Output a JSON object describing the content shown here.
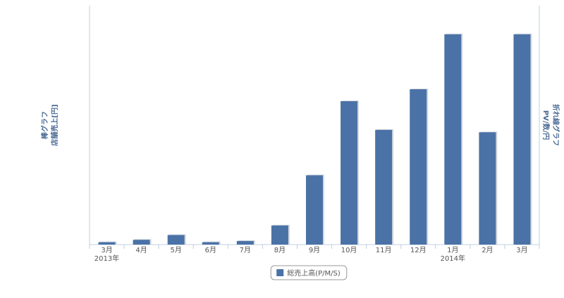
{
  "chart_data": {
    "type": "bar",
    "y_axis_title": [
      "棒グラフ",
      "店舗売上[円]"
    ],
    "y2_axis_title": [
      "折れ線グラフ",
      "PV/数/円"
    ],
    "categories": [
      "3月",
      "4月",
      "5月",
      "6月",
      "7月",
      "8月",
      "9月",
      "10月",
      "11月",
      "12月",
      "1月",
      "2月",
      "3月"
    ],
    "year_labels": [
      {
        "index": 0,
        "label": "2013年"
      },
      {
        "index": 10,
        "label": "2014年"
      }
    ],
    "series": [
      {
        "name": "総売上高(P/M/S)",
        "color": "#4a72a6",
        "values": [
          1,
          2,
          4,
          1,
          1.5,
          8,
          29,
          60,
          48,
          65,
          88,
          47,
          88
        ]
      }
    ],
    "ylim": [
      0,
      100
    ]
  }
}
